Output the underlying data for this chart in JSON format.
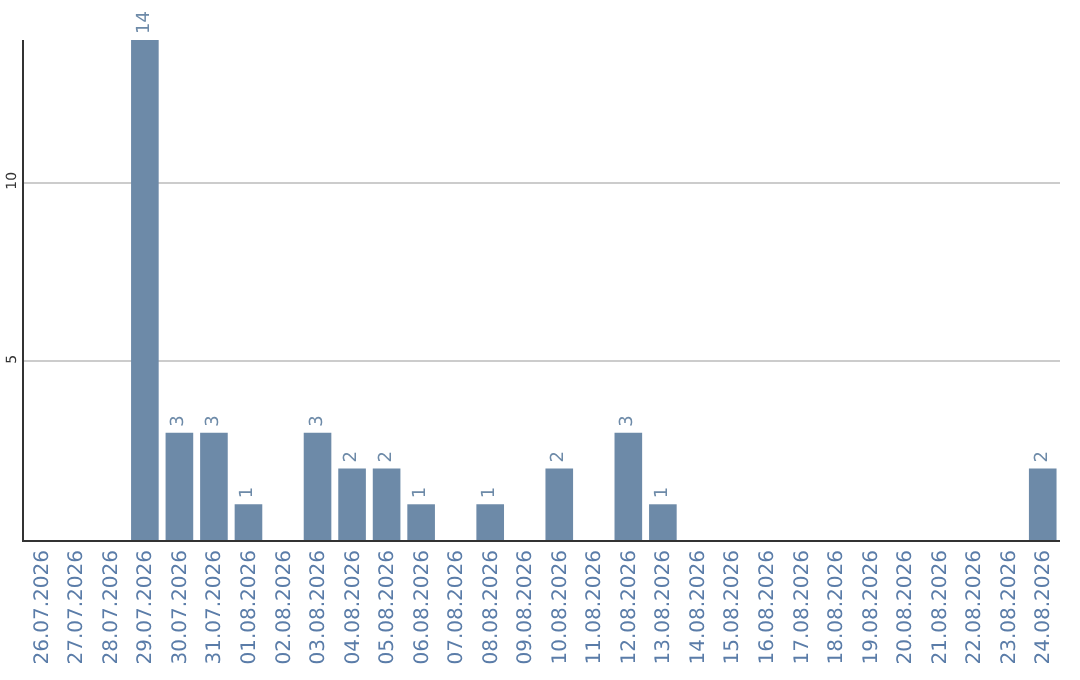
{
  "chart_data": {
    "type": "bar",
    "categories": [
      "26.07.2026",
      "27.07.2026",
      "28.07.2026",
      "29.07.2026",
      "30.07.2026",
      "31.07.2026",
      "01.08.2026",
      "02.08.2026",
      "03.08.2026",
      "04.08.2026",
      "05.08.2026",
      "06.08.2026",
      "07.08.2026",
      "08.08.2026",
      "09.08.2026",
      "10.08.2026",
      "11.08.2026",
      "12.08.2026",
      "13.08.2026",
      "14.08.2026",
      "15.08.2026",
      "16.08.2026",
      "17.08.2026",
      "18.08.2026",
      "19.08.2026",
      "20.08.2026",
      "21.08.2026",
      "22.08.2026",
      "23.08.2026",
      "24.08.2026"
    ],
    "values": [
      0,
      0,
      0,
      14,
      3,
      3,
      1,
      0,
      3,
      2,
      2,
      1,
      0,
      1,
      0,
      2,
      0,
      3,
      1,
      0,
      0,
      0,
      0,
      0,
      0,
      0,
      0,
      0,
      0,
      2
    ],
    "value_labels": [
      null,
      null,
      null,
      "14",
      "3",
      "3",
      "1",
      null,
      "3",
      "2",
      "2",
      "1",
      null,
      "1",
      null,
      "2",
      null,
      "3",
      "1",
      null,
      null,
      null,
      null,
      null,
      null,
      null,
      null,
      null,
      null,
      "2"
    ],
    "color": "#6d8aa8",
    "ylim": [
      0,
      14
    ],
    "yticks": [
      5,
      10
    ],
    "grid": "y"
  }
}
